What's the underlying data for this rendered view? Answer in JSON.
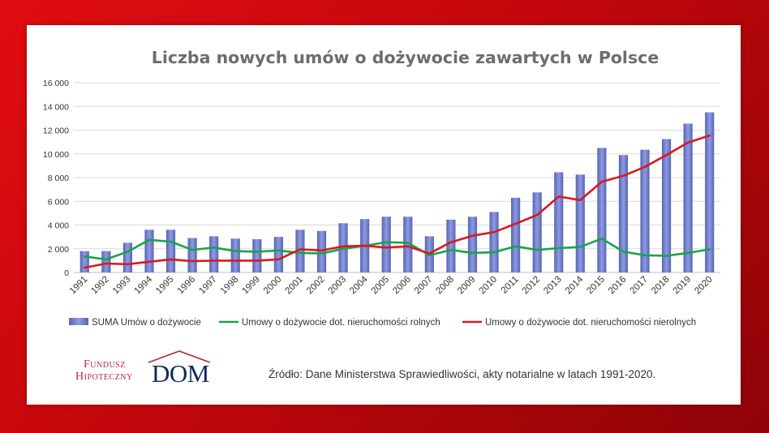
{
  "chart_data": {
    "type": "bar",
    "title": "Liczba nowych umów o dożywocie zawartych w Polsce",
    "categories": [
      "1991",
      "1992",
      "1993",
      "1994",
      "1995",
      "1996",
      "1997",
      "1998",
      "1999",
      "2000",
      "2001",
      "2002",
      "2003",
      "2004",
      "2005",
      "2006",
      "2007",
      "2008",
      "2009",
      "2010",
      "2011",
      "2012",
      "2013",
      "2014",
      "2015",
      "2016",
      "2017",
      "2018",
      "2019",
      "2020"
    ],
    "ylim": [
      0,
      16000
    ],
    "yticks": [
      "0",
      "2 000",
      "4 000",
      "6 000",
      "8 000",
      "10 000",
      "12 000",
      "14 000",
      "16 000"
    ],
    "grid": true,
    "legend_position": "bottom",
    "series": [
      {
        "name": "SUMA Umów o dożywocie",
        "kind": "bar",
        "color": "#6f7fc9",
        "values": [
          1800,
          1800,
          2500,
          3600,
          3600,
          2900,
          3050,
          2850,
          2800,
          3000,
          3600,
          3500,
          4150,
          4500,
          4700,
          4700,
          3050,
          4450,
          4700,
          5100,
          6300,
          6750,
          8450,
          8250,
          10500,
          9900,
          10350,
          11250,
          12550,
          13500
        ]
      },
      {
        "name": "Umowy o dożywocie dot. nieruchomości rolnych",
        "kind": "line",
        "color": "#1aa34a",
        "values": [
          1350,
          1100,
          1750,
          2750,
          2600,
          1900,
          2100,
          1800,
          1750,
          1850,
          1650,
          1600,
          2000,
          2250,
          2550,
          2500,
          1450,
          1900,
          1650,
          1700,
          2200,
          1900,
          2050,
          2150,
          2850,
          1750,
          1450,
          1400,
          1650,
          1950
        ]
      },
      {
        "name": "Umowy o dożywocie dot. nieruchomości nierolnych",
        "kind": "line",
        "color": "#d91a1f",
        "values": [
          400,
          750,
          700,
          900,
          1100,
          950,
          1000,
          1000,
          1000,
          1100,
          1950,
          1850,
          2200,
          2250,
          2100,
          2200,
          1600,
          2550,
          3100,
          3400,
          4100,
          4850,
          6400,
          6100,
          7650,
          8150,
          8900,
          9900,
          10950,
          11550
        ]
      }
    ]
  },
  "footer": {
    "logo_line1": "Fundusz",
    "logo_line2": "Hipoteczny",
    "logo_dom": "DOM",
    "source": "Źródło:  Dane Ministerstwa Sprawiedliwości, akty notarialne w latach 1991-2020."
  }
}
